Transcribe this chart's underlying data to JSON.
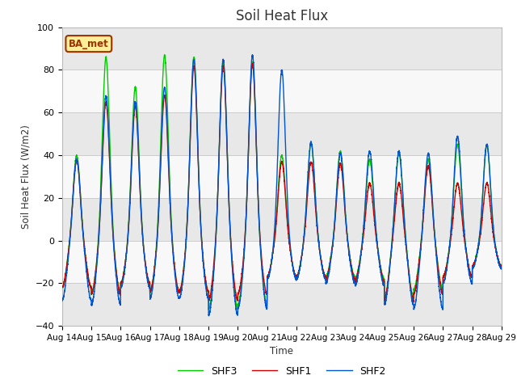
{
  "title": "Soil Heat Flux",
  "ylabel": "Soil Heat Flux (W/m2)",
  "xlabel": "Time",
  "ylim": [
    -40,
    100
  ],
  "yticks": [
    -40,
    -20,
    0,
    20,
    40,
    60,
    80,
    100
  ],
  "start_day": 14,
  "n_days": 15,
  "shf1_color": "#cc0000",
  "shf2_color": "#0055cc",
  "shf3_color": "#00cc00",
  "legend_label1": "SHF1",
  "legend_label2": "SHF2",
  "legend_label3": "SHF3",
  "annotation_text": "BA_met",
  "annotation_bg": "#ffee99",
  "annotation_border": "#993300",
  "grid_color": "#cccccc",
  "bg_color": "#f0f0f0",
  "line_width": 1.0,
  "day_peaks_shf1": [
    38,
    65,
    63,
    68,
    82,
    82,
    83,
    37,
    37,
    36,
    27,
    27,
    35,
    27,
    27
  ],
  "day_peaks_shf2": [
    38,
    68,
    65,
    72,
    85,
    85,
    87,
    80,
    46,
    41,
    42,
    42,
    41,
    49,
    45
  ],
  "day_peaks_shf3": [
    40,
    86,
    72,
    87,
    86,
    84,
    84,
    40,
    46,
    42,
    38,
    41,
    38,
    45,
    45
  ],
  "night_troughs_shf1": [
    -22,
    -25,
    -20,
    -24,
    -24,
    -28,
    -25,
    -17,
    -17,
    -18,
    -19,
    -28,
    -25,
    -17,
    -12
  ],
  "night_troughs_shf2": [
    -28,
    -30,
    -22,
    -27,
    -27,
    -35,
    -32,
    -18,
    -18,
    -20,
    -21,
    -30,
    -32,
    -20,
    -13
  ],
  "night_troughs_shf3": [
    -22,
    -25,
    -20,
    -24,
    -24,
    -32,
    -30,
    -17,
    -17,
    -17,
    -18,
    -27,
    -23,
    -17,
    -12
  ]
}
